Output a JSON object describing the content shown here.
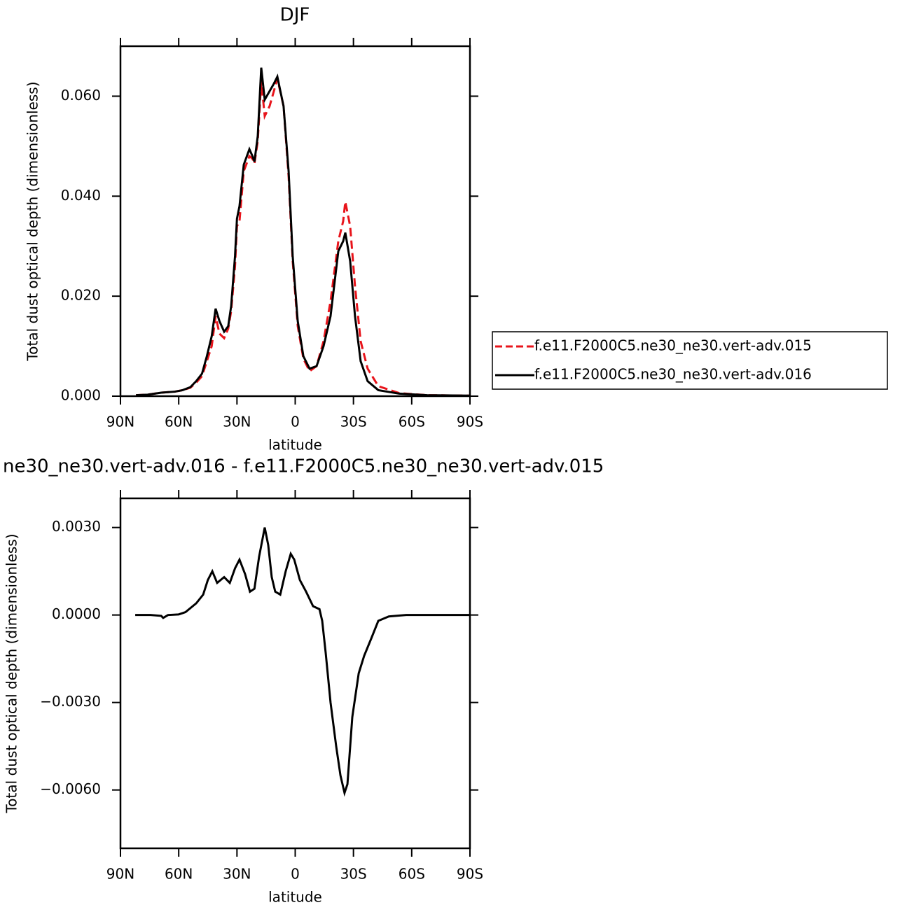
{
  "chart_data": [
    {
      "type": "line",
      "title": "DJF",
      "xlabel": "latitude",
      "ylabel": "Total dust optical depth (dimensionless)",
      "xlim": [
        90,
        -90
      ],
      "xticks": [
        {
          "value": 90,
          "label": "90N"
        },
        {
          "value": 60,
          "label": "60N"
        },
        {
          "value": 30,
          "label": "30N"
        },
        0,
        {
          "value": -30,
          "label": "30S"
        },
        {
          "value": -60,
          "label": "60S"
        },
        {
          "value": -90,
          "label": "90S"
        }
      ],
      "ylim": [
        0,
        0.07
      ],
      "yticks": [
        {
          "value": 0,
          "label": "0.000"
        },
        {
          "value": 0.02,
          "label": "0.020"
        },
        {
          "value": 0.04,
          "label": "0.040"
        },
        {
          "value": 0.06,
          "label": "0.060"
        }
      ],
      "legend": "outside-right",
      "x": [
        82,
        76,
        69,
        62,
        58,
        54,
        51,
        48,
        45.5,
        43,
        41,
        39,
        36.6,
        34.5,
        33,
        31,
        30,
        28.7,
        26.5,
        23.6,
        22,
        21,
        19.3,
        17.5,
        15.7,
        13.2,
        11,
        9.2,
        6,
        3.4,
        1.3,
        -1.3,
        -4.2,
        -7.4,
        -11,
        -14.6,
        -18.2,
        -22.2,
        -24.7,
        -25.8,
        -28.3,
        -30.8,
        -33.7,
        -37.3,
        -42.8,
        -53.6,
        -68,
        -90
      ],
      "series": [
        {
          "name": "f.e11.F2000C5.ne30_ne30.vert-adv.015",
          "color": "#e8141b",
          "line_style": "dashed",
          "values": [
            0.0002,
            0.0003,
            0.0007,
            0.0009,
            0.0012,
            0.0017,
            0.0027,
            0.004,
            0.007,
            0.01,
            0.016,
            0.0125,
            0.0116,
            0.0135,
            0.017,
            0.026,
            0.034,
            0.035,
            0.045,
            0.048,
            0.0475,
            0.0465,
            0.051,
            0.063,
            0.056,
            0.058,
            0.061,
            0.0635,
            0.058,
            0.044,
            0.027,
            0.014,
            0.0075,
            0.005,
            0.006,
            0.011,
            0.019,
            0.031,
            0.035,
            0.0389,
            0.034,
            0.022,
            0.011,
            0.0055,
            0.002,
            0.0006,
            0.0002,
            0.0001
          ]
        },
        {
          "name": "f.e11.F2000C5.ne30_ne30.vert-adv.016",
          "color": "#000000",
          "line_style": "solid",
          "values": [
            0.0002,
            0.0003,
            0.0007,
            0.0009,
            0.0012,
            0.0018,
            0.003,
            0.0045,
            0.008,
            0.012,
            0.0175,
            0.015,
            0.0129,
            0.014,
            0.018,
            0.028,
            0.0355,
            0.038,
            0.0463,
            0.0494,
            0.048,
            0.0469,
            0.052,
            0.0657,
            0.0593,
            0.061,
            0.0625,
            0.0639,
            0.058,
            0.045,
            0.028,
            0.015,
            0.008,
            0.0055,
            0.006,
            0.01,
            0.016,
            0.029,
            0.031,
            0.0327,
            0.027,
            0.016,
            0.007,
            0.003,
            0.0012,
            0.0005,
            0.0002,
            0.0001
          ]
        }
      ]
    },
    {
      "type": "line",
      "title": "ne30_ne30.vert-adv.016 - f.e11.F2000C5.ne30_ne30.vert-adv.015",
      "xlabel": "latitude",
      "ylabel": "Total dust optical depth (dimensionless)",
      "xlim": [
        90,
        -90
      ],
      "xticks": [
        {
          "value": 90,
          "label": "90N"
        },
        {
          "value": 60,
          "label": "60N"
        },
        {
          "value": 30,
          "label": "30N"
        },
        0,
        {
          "value": -30,
          "label": "30S"
        },
        {
          "value": -60,
          "label": "60S"
        },
        {
          "value": -90,
          "label": "90S"
        }
      ],
      "ylim": [
        -0.008,
        0.004
      ],
      "yticks": [
        {
          "value": -0.006,
          "label": "−0.0060"
        },
        {
          "value": -0.003,
          "label": "−0.0030"
        },
        {
          "value": 0,
          "label": "0.0000"
        },
        {
          "value": 0.003,
          "label": "0.0030"
        }
      ],
      "x": [
        82.4,
        74.5,
        69,
        68,
        65.5,
        60,
        56.5,
        51,
        47.4,
        45,
        42.7,
        40.2,
        36.6,
        33.7,
        31,
        28.7,
        25.8,
        23.3,
        21,
        18.6,
        15.7,
        13.9,
        12.1,
        10.3,
        7.7,
        4.9,
        2.3,
        0.5,
        -2.4,
        -5.6,
        -9.2,
        -12.5,
        -13.9,
        -15.7,
        -18.2,
        -21.1,
        -23.3,
        -25.4,
        -26.9,
        -29.4,
        -32.7,
        -35.5,
        -39.2,
        -42.8,
        -48.2,
        -57.2,
        -90
      ],
      "series": [
        {
          "color": "#000000",
          "line_style": "solid",
          "values": [
            0,
            0,
            -3e-05,
            -0.0001,
            0,
            2e-05,
            0.0001,
            0.0004,
            0.0007,
            0.0012,
            0.0015,
            0.0011,
            0.0013,
            0.0011,
            0.0016,
            0.0019,
            0.0014,
            0.0008,
            0.0009,
            0.002,
            0.003,
            0.0024,
            0.0013,
            0.0008,
            0.0007,
            0.0015,
            0.0021,
            0.0019,
            0.0012,
            0.0008,
            0.0003,
            0.0002,
            -0.0002,
            -0.0013,
            -0.003,
            -0.0045,
            -0.0055,
            -0.0061,
            -0.0058,
            -0.0035,
            -0.002,
            -0.0014,
            -0.0008,
            -0.0002,
            -5e-05,
            0,
            0
          ]
        }
      ]
    }
  ]
}
